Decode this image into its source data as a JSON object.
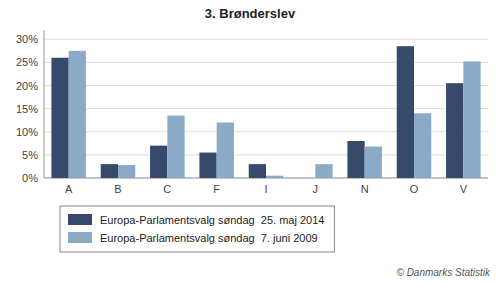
{
  "chart_data": {
    "type": "bar",
    "title": "3. Brønderslev",
    "categories": [
      "A",
      "B",
      "C",
      "F",
      "I",
      "J",
      "N",
      "O",
      "V"
    ],
    "series": [
      {
        "name": "Europa-Parlamentsvalg søndag  25. maj 2014",
        "color": "#374a6b",
        "values": [
          26.0,
          3.0,
          7.0,
          5.5,
          3.0,
          0.0,
          8.0,
          28.5,
          20.5
        ]
      },
      {
        "name": "Europa-Parlamentsvalg søndag  7. juni 2009",
        "color": "#8aaac8",
        "values": [
          27.5,
          2.8,
          13.5,
          12.0,
          0.5,
          3.0,
          6.8,
          14.0,
          25.2
        ]
      }
    ],
    "ylim": [
      0,
      32
    ],
    "yticks": [
      {
        "value": 0,
        "label": "0%"
      },
      {
        "value": 5,
        "label": "5%"
      },
      {
        "value": 10,
        "label": "10%"
      },
      {
        "value": 15,
        "label": "15%"
      },
      {
        "value": 20,
        "label": "20%"
      },
      {
        "value": 25,
        "label": "25%"
      },
      {
        "value": 30,
        "label": "30%"
      }
    ],
    "grid": true,
    "legend": "bottom",
    "annotations": [
      "© Danmarks Statistik"
    ]
  }
}
